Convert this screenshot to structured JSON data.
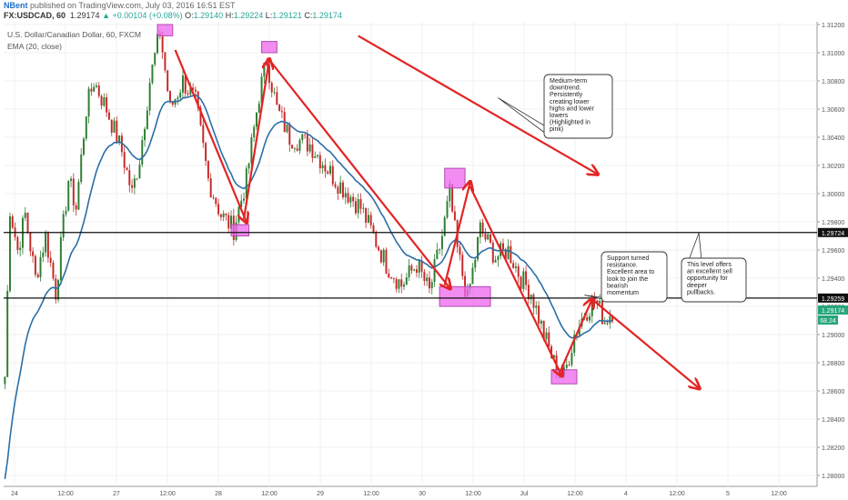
{
  "header": {
    "author": "NBent",
    "published_text": "published on TradingView.com, July 03, 2016 16:51 EST",
    "symbol": "FX:USDCAD, 60",
    "last": "1.29174",
    "change": "+0.00104 (+0.08%)",
    "o_label": "O:",
    "o_value": "1.29140",
    "h_label": "H:",
    "h_value": "1.29224",
    "l_label": "L:",
    "l_value": "1.29121",
    "c_label": "C:",
    "c_value": "1.29174"
  },
  "legend": {
    "title": "U.S. Dollar/Canadian Dollar, 60, FXCM",
    "ema": "EMA (20, close)"
  },
  "colors": {
    "bull": "#2e7d32",
    "bear": "#c62828",
    "ema": "#2b6ea6",
    "arrow": "#e32424",
    "highlight": "#ee66ee",
    "level_line": "#111111",
    "price_tag_green": "#26a67a"
  },
  "chart_data": {
    "type": "candlestick",
    "x_ticks": [
      "24",
      "12:00",
      "27",
      "12:00",
      "28",
      "12:00",
      "29",
      "12:00",
      "30",
      "12:00",
      "Jul",
      "12:00",
      "4",
      "12:00",
      "5",
      "12:00"
    ],
    "y_ticks": [
      "1.31200",
      "1.31000",
      "1.30800",
      "1.30600",
      "1.30400",
      "1.30200",
      "1.30000",
      "1.29800",
      "1.29600",
      "1.29400",
      "1.29200",
      "1.29000",
      "1.28800",
      "1.28600",
      "1.28400",
      "1.28200",
      "1.28000"
    ],
    "ylim": [
      1.2792,
      1.3125
    ],
    "price_scale": {
      "top_value": 1.312,
      "bottom_value": 1.28,
      "top_y": 27,
      "bottom_y": 523
    },
    "ohlc_path": [
      [
        0,
        1.287
      ],
      [
        2,
        1.299
      ],
      [
        5,
        1.296
      ],
      [
        8,
        1.2985
      ],
      [
        12,
        1.294
      ],
      [
        16,
        1.297
      ],
      [
        20,
        1.293
      ],
      [
        25,
        1.301
      ],
      [
        28,
        1.299
      ],
      [
        32,
        1.306
      ],
      [
        35,
        1.308
      ],
      [
        40,
        1.306
      ],
      [
        46,
        1.303
      ],
      [
        50,
        1.3
      ],
      [
        53,
        1.3025
      ],
      [
        57,
        1.308
      ],
      [
        61,
        1.3115
      ],
      [
        65,
        1.306
      ],
      [
        70,
        1.308
      ],
      [
        75,
        1.3065
      ],
      [
        80,
        1.301
      ],
      [
        85,
        1.2985
      ],
      [
        90,
        1.2975
      ],
      [
        95,
        1.301
      ],
      [
        100,
        1.307
      ],
      [
        103,
        1.3095
      ],
      [
        107,
        1.306
      ],
      [
        112,
        1.304
      ],
      [
        120,
        1.3035
      ],
      [
        130,
        1.301
      ],
      [
        140,
        1.299
      ],
      [
        150,
        1.295
      ],
      [
        156,
        1.2935
      ],
      [
        162,
        1.295
      ],
      [
        167,
        1.293
      ],
      [
        172,
        1.297
      ],
      [
        175,
        1.3
      ],
      [
        178,
        1.296
      ],
      [
        182,
        1.2925
      ],
      [
        187,
        1.2975
      ],
      [
        193,
        1.2955
      ],
      [
        198,
        1.296
      ],
      [
        203,
        1.294
      ],
      [
        207,
        1.293
      ],
      [
        212,
        1.29
      ],
      [
        216,
        1.288
      ],
      [
        220,
        1.287
      ],
      [
        224,
        1.29
      ],
      [
        228,
        1.2915
      ],
      [
        232,
        1.2925
      ],
      [
        236,
        1.291
      ],
      [
        239,
        1.2917
      ]
    ],
    "ema_period": 20,
    "levels": [
      {
        "value": 1.29724,
        "label": "1.29724"
      },
      {
        "value": 1.29259,
        "label": "1.29259"
      }
    ],
    "current_price": {
      "value": 1.29174,
      "label": "1.29174"
    },
    "indicator_tag": "68.24",
    "highlights": [
      {
        "x1": 60,
        "x2": 66,
        "y1": 1.3112,
        "y2": 1.312
      },
      {
        "x1": 89,
        "x2": 96,
        "y1": 1.297,
        "y2": 1.2978
      },
      {
        "x1": 101,
        "x2": 107,
        "y1": 1.31,
        "y2": 1.3108
      },
      {
        "x1": 173,
        "x2": 181,
        "y1": 1.3004,
        "y2": 1.3018
      },
      {
        "x1": 171,
        "x2": 191,
        "y1": 1.292,
        "y2": 1.2934
      },
      {
        "x1": 215,
        "x2": 225,
        "y1": 1.2865,
        "y2": 1.2875
      }
    ],
    "arrows": [
      {
        "from": [
          67,
          1.3102
        ],
        "to": [
          95,
          1.298
        ]
      },
      {
        "from": [
          94,
          1.2982
        ],
        "to": [
          104,
          1.3095
        ]
      },
      {
        "from": [
          104,
          1.3095
        ],
        "to": [
          175,
          1.2933
        ]
      },
      {
        "from": [
          173,
          1.2935
        ],
        "to": [
          183,
          1.3008
        ]
      },
      {
        "from": [
          183,
          1.3005
        ],
        "to": [
          219,
          1.2871
        ]
      },
      {
        "from": [
          218,
          1.2872
        ],
        "to": [
          231,
          1.2925
        ]
      },
      {
        "from": [
          231,
          1.2925
        ],
        "to": [
          273,
          1.2862
        ]
      },
      {
        "from": [
          139,
          1.3112
        ],
        "to": [
          233,
          1.3014
        ]
      }
    ],
    "annotations": [
      {
        "lines": [
          "Medium-term",
          "downtrend.",
          "Persistently",
          "creating lower",
          "highs and lower",
          "lowers",
          "(Highlighted in",
          "pink)"
        ],
        "pointer_to": [
          194,
          1.3068
        ]
      },
      {
        "lines": [
          "Support turned",
          "resistance.",
          "Excellent area to",
          "look to join the",
          "bearish",
          "momentum"
        ],
        "pointer_to": [
          228,
          1.2928
        ]
      },
      {
        "lines": [
          "This level offers",
          "an excellent sell",
          "opportunity for",
          "deeper",
          "pullbacks."
        ],
        "pointer_to": [
          273,
          1.2972
        ]
      }
    ]
  }
}
